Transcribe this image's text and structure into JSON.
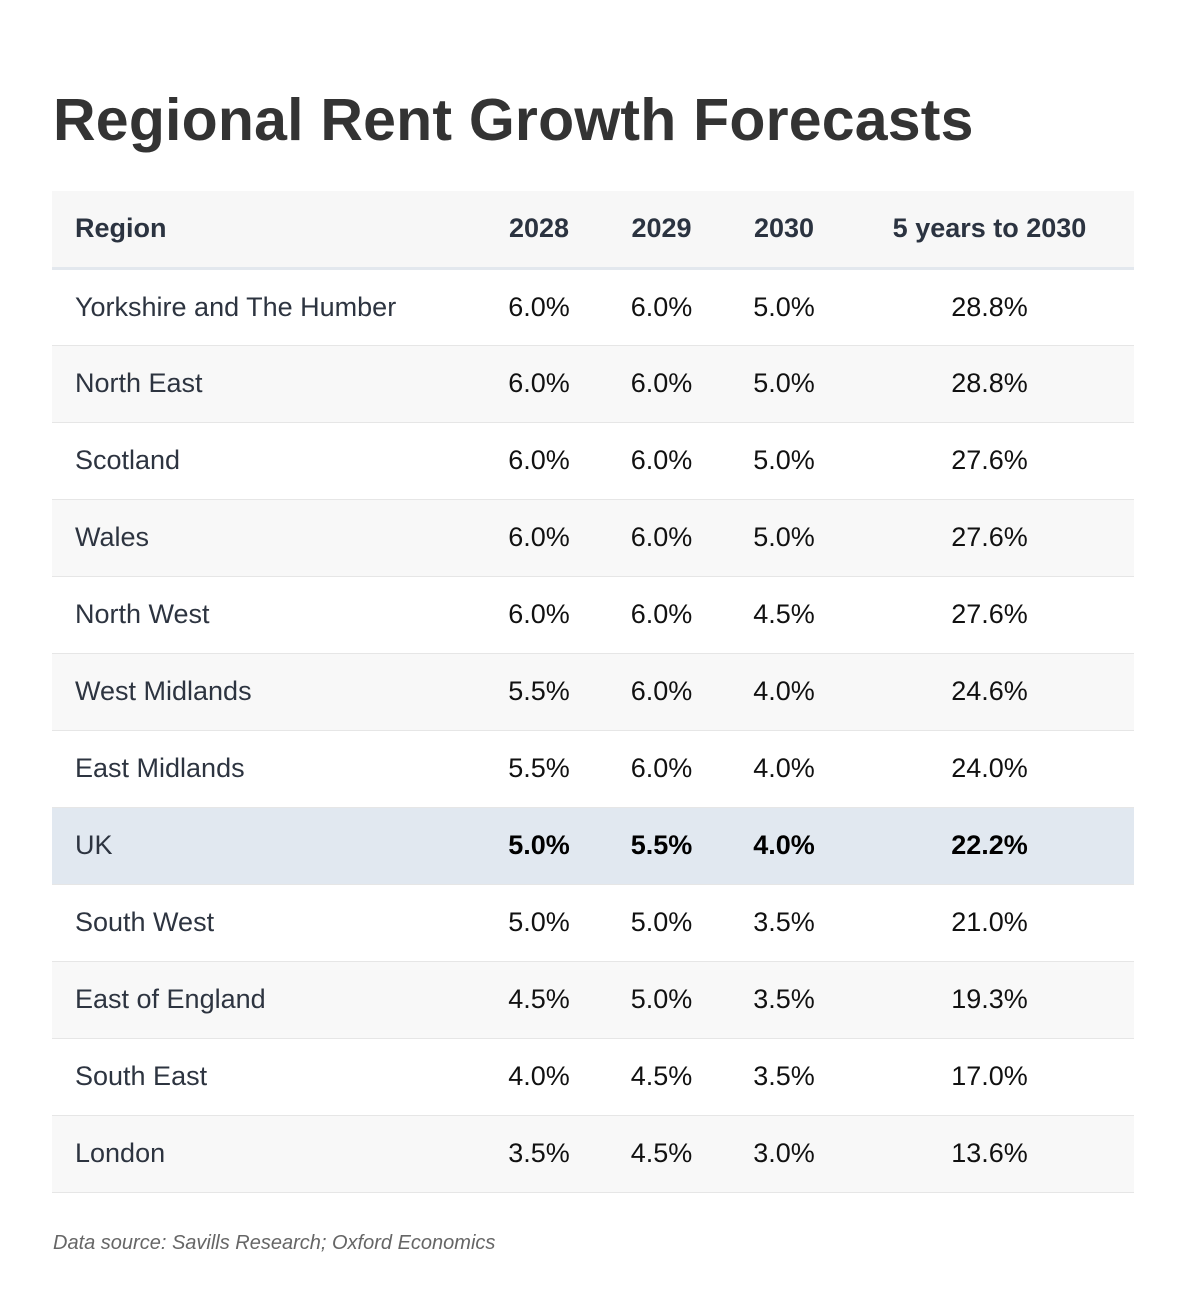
{
  "chart_data": {
    "type": "table",
    "title": "Regional Rent Growth Forecasts",
    "columns": [
      "Region",
      "2028",
      "2029",
      "2030",
      "5 years to 2030"
    ],
    "highlight_row": "UK",
    "rows": [
      {
        "region": "Yorkshire and The Humber",
        "y2028": "6.0%",
        "y2029": "6.0%",
        "y2030": "5.0%",
        "five_year": "28.8%"
      },
      {
        "region": "North East",
        "y2028": "6.0%",
        "y2029": "6.0%",
        "y2030": "5.0%",
        "five_year": "28.8%"
      },
      {
        "region": "Scotland",
        "y2028": "6.0%",
        "y2029": "6.0%",
        "y2030": "5.0%",
        "five_year": "27.6%"
      },
      {
        "region": "Wales",
        "y2028": "6.0%",
        "y2029": "6.0%",
        "y2030": "5.0%",
        "five_year": "27.6%"
      },
      {
        "region": "North West",
        "y2028": "6.0%",
        "y2029": "6.0%",
        "y2030": "4.5%",
        "five_year": "27.6%"
      },
      {
        "region": "West Midlands",
        "y2028": "5.5%",
        "y2029": "6.0%",
        "y2030": "4.0%",
        "five_year": "24.6%"
      },
      {
        "region": "East Midlands",
        "y2028": "5.5%",
        "y2029": "6.0%",
        "y2030": "4.0%",
        "five_year": "24.0%"
      },
      {
        "region": "UK",
        "y2028": "5.0%",
        "y2029": "5.5%",
        "y2030": "4.0%",
        "five_year": "22.2%"
      },
      {
        "region": "South West",
        "y2028": "5.0%",
        "y2029": "5.0%",
        "y2030": "3.5%",
        "five_year": "21.0%"
      },
      {
        "region": "East of England",
        "y2028": "4.5%",
        "y2029": "5.0%",
        "y2030": "3.5%",
        "five_year": "19.3%"
      },
      {
        "region": "South East",
        "y2028": "4.0%",
        "y2029": "4.5%",
        "y2030": "3.5%",
        "five_year": "17.0%"
      },
      {
        "region": "London",
        "y2028": "3.5%",
        "y2029": "4.5%",
        "y2030": "3.0%",
        "five_year": "13.6%"
      }
    ],
    "source": "Data source: Savills Research; Oxford Economics"
  },
  "colors": {
    "header_bg": "#f7f7f7",
    "row_alt_bg": "#f8f8f8",
    "highlight_bg": "#e1e8f0",
    "title_text": "#333333",
    "source_text": "#666666"
  }
}
